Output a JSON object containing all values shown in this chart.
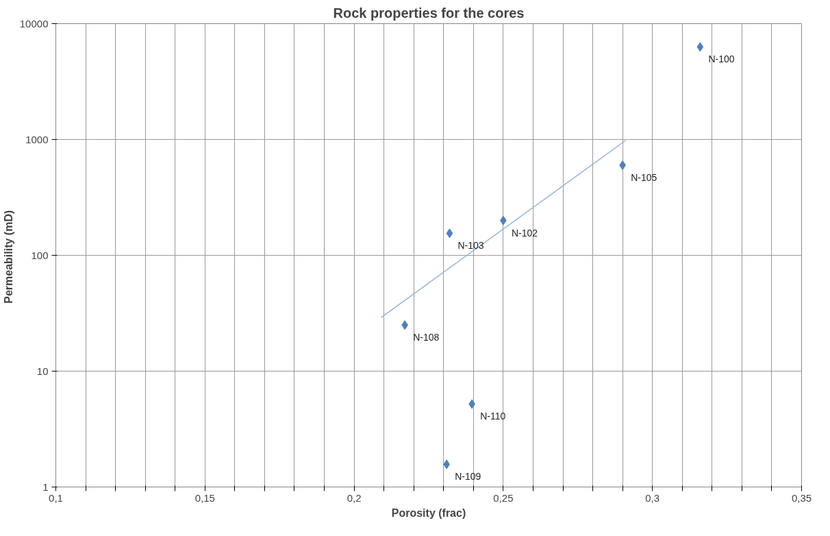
{
  "chart_data": {
    "type": "scatter",
    "title": "Rock properties for the cores",
    "xlabel": "Porosity (frac)",
    "ylabel": "Permeability  (mD)",
    "log": "y",
    "grid": true,
    "marker": "diamond",
    "xlim": [
      0.1,
      0.35
    ],
    "ylim": [
      1,
      10000
    ],
    "xticks": [
      {
        "value": 0.1,
        "label": "0,1"
      },
      {
        "value": 0.11,
        "label": null
      },
      {
        "value": 0.12,
        "label": null
      },
      {
        "value": 0.13,
        "label": null
      },
      {
        "value": 0.14,
        "label": null
      },
      {
        "value": 0.15,
        "label": "0,15"
      },
      {
        "value": 0.16,
        "label": null
      },
      {
        "value": 0.17,
        "label": null
      },
      {
        "value": 0.18,
        "label": null
      },
      {
        "value": 0.19,
        "label": null
      },
      {
        "value": 0.2,
        "label": "0,2"
      },
      {
        "value": 0.21,
        "label": null
      },
      {
        "value": 0.22,
        "label": null
      },
      {
        "value": 0.23,
        "label": null
      },
      {
        "value": 0.24,
        "label": null
      },
      {
        "value": 0.25,
        "label": "0,25"
      },
      {
        "value": 0.26,
        "label": null
      },
      {
        "value": 0.27,
        "label": null
      },
      {
        "value": 0.28,
        "label": null
      },
      {
        "value": 0.29,
        "label": null
      },
      {
        "value": 0.3,
        "label": "0,3"
      },
      {
        "value": 0.31,
        "label": null
      },
      {
        "value": 0.32,
        "label": null
      },
      {
        "value": 0.33,
        "label": null
      },
      {
        "value": 0.34,
        "label": null
      },
      {
        "value": 0.35,
        "label": "0,35"
      }
    ],
    "yticks": [
      1,
      10,
      100,
      1000,
      10000
    ],
    "series": [
      {
        "color": "#4f81bd",
        "x": [
          0.316,
          0.29,
          0.25,
          0.232,
          0.217,
          0.2395,
          0.231
        ],
        "values": [
          6300,
          600,
          200,
          155,
          25,
          5.2,
          1.57
        ]
      },
      {
        "type": "line",
        "color": "#95b3d7",
        "marker": "none",
        "line_style": "solid",
        "x": [
          0.209,
          0.291
        ],
        "values": [
          29,
          980
        ]
      }
    ],
    "annotations": [
      {
        "text": "N-100",
        "x": 0.316,
        "y": 6300
      },
      {
        "text": "N-105",
        "x": 0.29,
        "y": 600
      },
      {
        "text": "N-102",
        "x": 0.25,
        "y": 200
      },
      {
        "text": "N-103",
        "x": 0.232,
        "y": 155
      },
      {
        "text": "N-108",
        "x": 0.217,
        "y": 25
      },
      {
        "text": "N-110",
        "x": 0.2395,
        "y": 5.2
      },
      {
        "text": "N-109",
        "x": 0.231,
        "y": 1.57
      }
    ]
  }
}
